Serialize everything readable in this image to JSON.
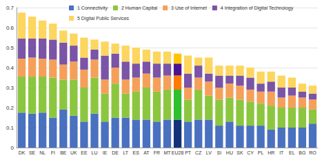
{
  "chart_data": {
    "type": "bar",
    "stacked": true,
    "grid": true,
    "legend": "top",
    "categories": [
      "DK",
      "SE",
      "NL",
      "FI",
      "BE",
      "UK",
      "EE",
      "LU",
      "IE",
      "DE",
      "LT",
      "ES",
      "AT",
      "FR",
      "MT",
      "EU28",
      "PT",
      "CZ",
      "LV",
      "SI",
      "HU",
      "SK",
      "CY",
      "PL",
      "HR",
      "IT",
      "EL",
      "BG",
      "RO"
    ],
    "ylim": [
      0,
      0.7
    ],
    "yticks": [
      0,
      0.1,
      0.2,
      0.3,
      0.4,
      0.5,
      0.6,
      0.7
    ],
    "series": [
      {
        "name": "1 Connectivity",
        "color": "#4a71c0",
        "colors": [
          "#4a71c0",
          "#4a71c0",
          "#4a71c0",
          "#4a71c0",
          "#4a71c0",
          "#4a71c0",
          "#4a71c0",
          "#4a71c0",
          "#4a71c0",
          "#4a71c0",
          "#4a71c0",
          "#4a71c0",
          "#4a71c0",
          "#4a71c0",
          "#4a71c0",
          "#14327a",
          "#4a71c0",
          "#4a71c0",
          "#4a71c0",
          "#4a71c0",
          "#4a71c0",
          "#4a71c0",
          "#4a71c0",
          "#4a71c0",
          "#4a71c0",
          "#4a71c0",
          "#4a71c0",
          "#4a71c0",
          "#4a71c0"
        ],
        "values": [
          0.175,
          0.17,
          0.175,
          0.15,
          0.19,
          0.16,
          0.13,
          0.17,
          0.13,
          0.15,
          0.15,
          0.14,
          0.14,
          0.13,
          0.14,
          0.14,
          0.13,
          0.14,
          0.14,
          0.11,
          0.13,
          0.11,
          0.11,
          0.11,
          0.09,
          0.1,
          0.1,
          0.1,
          0.12
        ]
      },
      {
        "name": "2 Human Capital",
        "color": "#8cc63f",
        "colors": [
          "#8cc63f",
          "#8cc63f",
          "#8cc63f",
          "#8cc63f",
          "#8cc63f",
          "#8cc63f",
          "#8cc63f",
          "#8cc63f",
          "#8cc63f",
          "#8cc63f",
          "#8cc63f",
          "#8cc63f",
          "#8cc63f",
          "#8cc63f",
          "#8cc63f",
          "#2fbf2f",
          "#8cc63f",
          "#8cc63f",
          "#8cc63f",
          "#8cc63f",
          "#8cc63f",
          "#8cc63f",
          "#8cc63f",
          "#8cc63f",
          "#8cc63f",
          "#8cc63f",
          "#8cc63f",
          "#8cc63f",
          "#8cc63f"
        ],
        "values": [
          0.18,
          0.185,
          0.18,
          0.2,
          0.15,
          0.18,
          0.17,
          0.18,
          0.14,
          0.17,
          0.12,
          0.14,
          0.16,
          0.15,
          0.15,
          0.15,
          0.11,
          0.15,
          0.12,
          0.13,
          0.12,
          0.13,
          0.12,
          0.11,
          0.12,
          0.1,
          0.1,
          0.1,
          0.07
        ]
      },
      {
        "name": "3 Use of Internet",
        "color": "#f5a05a",
        "colors": [
          "#f5a05a",
          "#f5a05a",
          "#f5a05a",
          "#f5a05a",
          "#f5a05a",
          "#f5a05a",
          "#f5a05a",
          "#f5a05a",
          "#f5a05a",
          "#f5a05a",
          "#f5a05a",
          "#f5a05a",
          "#f5a05a",
          "#f5a05a",
          "#f5a05a",
          "#ff7a00",
          "#f5a05a",
          "#f5a05a",
          "#f5a05a",
          "#f5a05a",
          "#f5a05a",
          "#f5a05a",
          "#f5a05a",
          "#f5a05a",
          "#f5a05a",
          "#f5a05a",
          "#f5a05a",
          "#f5a05a",
          "#f5a05a"
        ],
        "values": [
          0.09,
          0.095,
          0.09,
          0.09,
          0.075,
          0.09,
          0.09,
          0.09,
          0.07,
          0.08,
          0.07,
          0.07,
          0.07,
          0.07,
          0.07,
          0.07,
          0.06,
          0.06,
          0.07,
          0.06,
          0.07,
          0.07,
          0.06,
          0.06,
          0.07,
          0.05,
          0.06,
          0.05,
          0.05
        ]
      },
      {
        "name": "4 Integration of Digital Technology",
        "color": "#7a54a6",
        "colors": [
          "#7a54a6",
          "#7a54a6",
          "#7a54a6",
          "#7a54a6",
          "#7a54a6",
          "#7a54a6",
          "#7a54a6",
          "#7a54a6",
          "#7a54a6",
          "#7a54a6",
          "#7a54a6",
          "#7a54a6",
          "#7a54a6",
          "#7a54a6",
          "#7a54a6",
          "#4b148c",
          "#7a54a6",
          "#7a54a6",
          "#7a54a6",
          "#7a54a6",
          "#7a54a6",
          "#7a54a6",
          "#7a54a6",
          "#7a54a6",
          "#7a54a6",
          "#7a54a6",
          "#7a54a6",
          "#7a54a6",
          "#7a54a6"
        ],
        "values": [
          0.1,
          0.095,
          0.1,
          0.1,
          0.11,
          0.08,
          0.06,
          0.05,
          0.12,
          0.07,
          0.09,
          0.07,
          0.06,
          0.07,
          0.06,
          0.06,
          0.07,
          0.06,
          0.04,
          0.06,
          0.04,
          0.05,
          0.06,
          0.04,
          0.05,
          0.05,
          0.04,
          0.03,
          0.03
        ]
      },
      {
        "name": "5 Digital Public Services",
        "color": "#fcd65e",
        "colors": [
          "#fcd65e",
          "#fcd65e",
          "#fcd65e",
          "#fcd65e",
          "#fcd65e",
          "#fcd65e",
          "#fcd65e",
          "#fcd65e",
          "#fcd65e",
          "#fcd65e",
          "#fcd65e",
          "#fcd65e",
          "#fcd65e",
          "#fcd65e",
          "#fcd65e",
          "#ffc400",
          "#fcd65e",
          "#fcd65e",
          "#fcd65e",
          "#fcd65e",
          "#fcd65e",
          "#fcd65e",
          "#fcd65e",
          "#fcd65e",
          "#fcd65e",
          "#fcd65e",
          "#fcd65e",
          "#fcd65e",
          "#fcd65e"
        ],
        "values": [
          0.13,
          0.11,
          0.09,
          0.08,
          0.06,
          0.06,
          0.1,
          0.05,
          0.07,
          0.05,
          0.08,
          0.08,
          0.06,
          0.06,
          0.06,
          0.05,
          0.09,
          0.04,
          0.08,
          0.05,
          0.05,
          0.05,
          0.05,
          0.06,
          0.05,
          0.06,
          0.05,
          0.04,
          0.04
        ]
      }
    ]
  }
}
